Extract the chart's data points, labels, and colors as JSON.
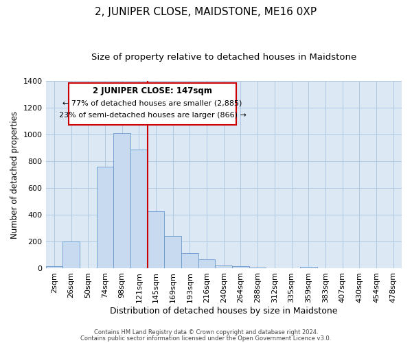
{
  "title": "2, JUNIPER CLOSE, MAIDSTONE, ME16 0XP",
  "subtitle": "Size of property relative to detached houses in Maidstone",
  "xlabel": "Distribution of detached houses by size in Maidstone",
  "ylabel": "Number of detached properties",
  "footer_line1": "Contains HM Land Registry data © Crown copyright and database right 2024.",
  "footer_line2": "Contains public sector information licensed under the Open Government Licence v3.0.",
  "bin_labels": [
    "2sqm",
    "26sqm",
    "50sqm",
    "74sqm",
    "98sqm",
    "121sqm",
    "145sqm",
    "169sqm",
    "193sqm",
    "216sqm",
    "240sqm",
    "264sqm",
    "288sqm",
    "312sqm",
    "335sqm",
    "359sqm",
    "383sqm",
    "407sqm",
    "430sqm",
    "454sqm",
    "478sqm"
  ],
  "bar_heights": [
    20,
    200,
    0,
    760,
    1010,
    890,
    425,
    245,
    115,
    70,
    25,
    20,
    10,
    0,
    0,
    15,
    0,
    0,
    0,
    0,
    0
  ],
  "bar_color": "#c8daef",
  "bar_edge_color": "#6699cc",
  "vline_label_idx": 6,
  "vline_color": "#cc0000",
  "annotation_title": "2 JUNIPER CLOSE: 147sqm",
  "annotation_line1": "← 77% of detached houses are smaller (2,885)",
  "annotation_line2": "23% of semi-detached houses are larger (866) →",
  "annotation_box_color": "#ffffff",
  "annotation_box_edge_color": "#cc0000",
  "ylim": [
    0,
    1400
  ],
  "yticks": [
    0,
    200,
    400,
    600,
    800,
    1000,
    1200,
    1400
  ],
  "plot_bg_color": "#dce9f5",
  "background_color": "#ffffff",
  "grid_color": "#b0c8e0",
  "title_fontsize": 11,
  "subtitle_fontsize": 9.5
}
